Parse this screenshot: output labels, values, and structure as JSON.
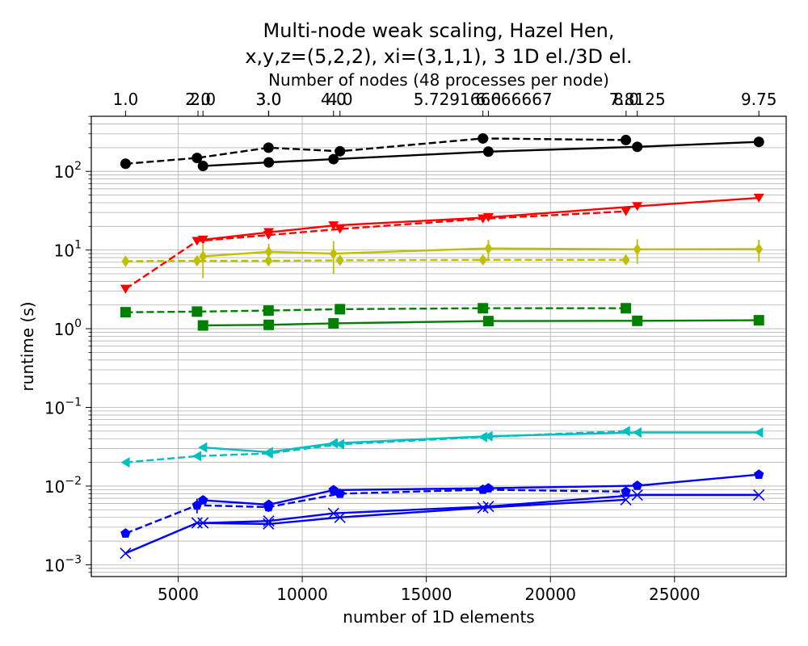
{
  "chart_data": {
    "type": "line",
    "title_line1": "Multi-node weak scaling, Hazel Hen,",
    "title_line2": "x,y,z=(5,2,2), xi=(3,1,1), 3 1D el./3D el.",
    "xlabel": "number of 1D elements",
    "ylabel": "runtime (s)",
    "x2label": "Number of nodes (48 processes per node)",
    "xlim": [
      1500,
      29500
    ],
    "ylim_log10": [
      -3.15,
      2.7
    ],
    "yscale": "log",
    "grid": true,
    "x_ticks": [
      5000,
      10000,
      15000,
      20000,
      25000
    ],
    "x_tick_labels": [
      "5000",
      "10000",
      "15000",
      "20000",
      "25000"
    ],
    "y_ticks_exp": [
      -3,
      -2,
      -1,
      0,
      1,
      2
    ],
    "top_axis_ticks": [
      {
        "x": 2880,
        "label": "1.0"
      },
      {
        "x": 5800,
        "label": "2.0"
      },
      {
        "x": 6000,
        "label": "2.0"
      },
      {
        "x": 8640,
        "label": "3.0"
      },
      {
        "x": 8650,
        "label": "3.0"
      },
      {
        "x": 11260,
        "label": "4.0"
      },
      {
        "x": 11520,
        "label": "4.0"
      },
      {
        "x": 17280,
        "label": "5.729166666667"
      },
      {
        "x": 17500,
        "label": "6.0"
      },
      {
        "x": 23050,
        "label": "8.0"
      },
      {
        "x": 23500,
        "label": "7.8125"
      },
      {
        "x": 28400,
        "label": "9.75"
      }
    ],
    "series": [
      {
        "color": "#000000",
        "marker": "circle",
        "dash": true,
        "x": [
          2880,
          5760,
          8640,
          11520,
          17280,
          23040
        ],
        "y": [
          125,
          148,
          200,
          180,
          262,
          250
        ]
      },
      {
        "color": "#000000",
        "marker": "circle",
        "dash": false,
        "x": [
          6000,
          8650,
          11260,
          17500,
          23500,
          28400
        ],
        "y": [
          117,
          130,
          143,
          178,
          205,
          237
        ]
      },
      {
        "color": "#ff0000",
        "marker": "triangle-down",
        "dash": true,
        "x": [
          2880,
          5760,
          8640,
          11520,
          17280,
          23040
        ],
        "y": [
          3.2,
          13,
          15.5,
          18.5,
          25,
          31
        ]
      },
      {
        "color": "#ff0000",
        "marker": "triangle-down",
        "dash": false,
        "x": [
          6000,
          8650,
          11260,
          17500,
          23500,
          28400
        ],
        "y": [
          13.5,
          16.8,
          20.5,
          26,
          36,
          46
        ]
      },
      {
        "color": "#bfbf00",
        "marker": "diamond",
        "dash": true,
        "x": [
          2880,
          5760,
          8640,
          11520,
          17280,
          23040
        ],
        "y": [
          7.2,
          7.3,
          7.3,
          7.4,
          7.5,
          7.5
        ],
        "err": [
          0.9,
          0.9,
          0.9,
          0.9,
          0.9,
          0.9
        ]
      },
      {
        "color": "#bfbf00",
        "marker": "diamond",
        "dash": false,
        "x": [
          6000,
          8650,
          11260,
          17500,
          23500,
          28400
        ],
        "y": [
          8.3,
          9.5,
          9.0,
          10.5,
          10.2,
          10.3
        ],
        "err": [
          3.9,
          2.5,
          4.0,
          3.0,
          3.5,
          3.2
        ]
      },
      {
        "color": "#008000",
        "marker": "square",
        "dash": true,
        "x": [
          2880,
          5760,
          8640,
          11520,
          17280,
          23040
        ],
        "y": [
          1.62,
          1.65,
          1.7,
          1.77,
          1.82,
          1.82
        ]
      },
      {
        "color": "#008000",
        "marker": "square",
        "dash": false,
        "x": [
          6000,
          8650,
          11260,
          17500,
          23500,
          28400
        ],
        "y": [
          1.1,
          1.12,
          1.17,
          1.25,
          1.26,
          1.28
        ]
      },
      {
        "color": "#00bfbf",
        "marker": "triangle-left",
        "dash": true,
        "x": [
          2880,
          5760,
          8640,
          11520,
          17280,
          23040
        ],
        "y": [
          0.02,
          0.024,
          0.026,
          0.034,
          0.042,
          0.05
        ]
      },
      {
        "color": "#00bfbf",
        "marker": "triangle-left",
        "dash": false,
        "x": [
          6000,
          8650,
          11260,
          17500,
          23500,
          28400
        ],
        "y": [
          0.031,
          0.027,
          0.035,
          0.043,
          0.048,
          0.048
        ]
      },
      {
        "color": "#0000ff",
        "marker": "pentagon",
        "dash": true,
        "x": [
          2880,
          5760,
          8640,
          11520,
          17280,
          23040
        ],
        "y": [
          0.0025,
          0.0057,
          0.0054,
          0.008,
          0.009,
          0.0085
        ],
        "err": [
          0,
          0.0012,
          0.0007,
          0.0008,
          0.0008,
          0.0006
        ]
      },
      {
        "color": "#0000ff",
        "marker": "pentagon",
        "dash": false,
        "x": [
          6000,
          8650,
          11260,
          17500,
          23500,
          28400
        ],
        "y": [
          0.0066,
          0.0058,
          0.0089,
          0.0094,
          0.0101,
          0.014
        ]
      },
      {
        "color": "#0000ff",
        "marker": "x",
        "dash": false,
        "x": [
          2880,
          5760,
          8640,
          11520,
          17280,
          23040
        ],
        "y": [
          0.0014,
          0.0034,
          0.0033,
          0.004,
          0.0053,
          0.0067
        ]
      },
      {
        "color": "#0000ff",
        "marker": "x",
        "dash": false,
        "x": [
          6000,
          8650,
          11260,
          17500,
          23500,
          28400
        ],
        "y": [
          0.0034,
          0.0036,
          0.0045,
          0.0055,
          0.0077,
          0.0077
        ]
      }
    ]
  }
}
